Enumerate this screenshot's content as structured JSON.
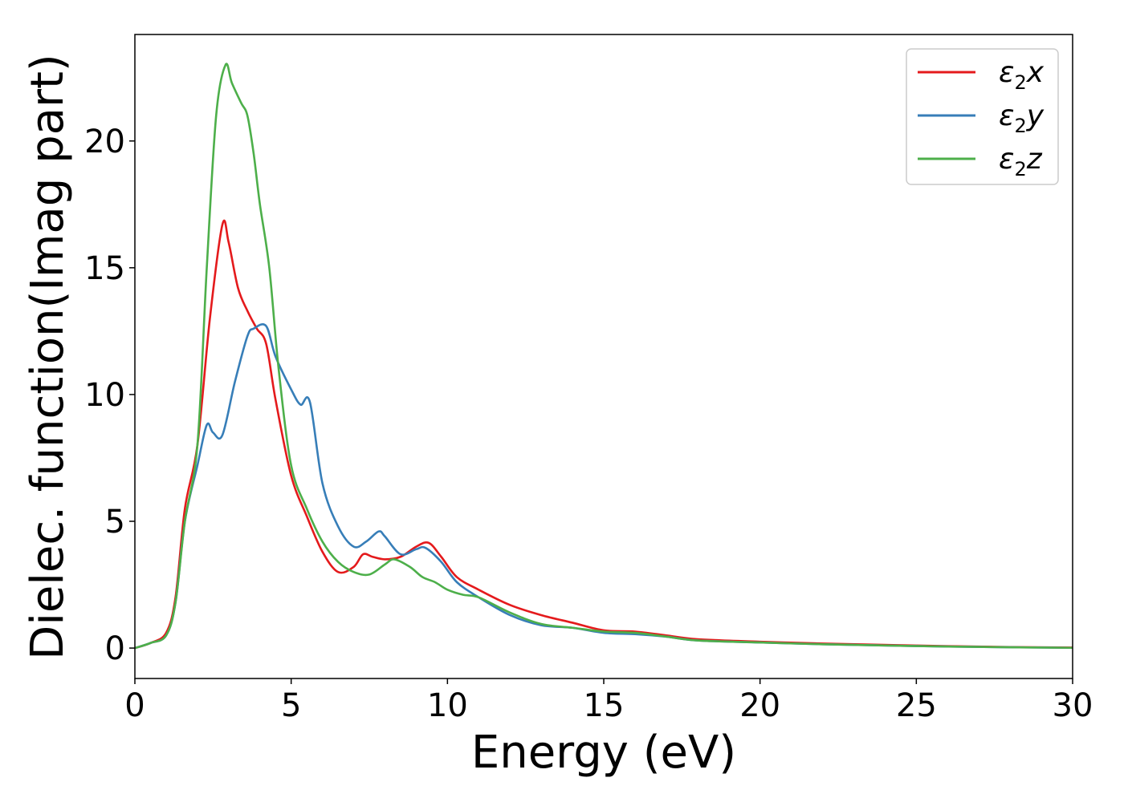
{
  "chart_data": {
    "type": "line",
    "title": "",
    "xlabel": "Energy (eV)",
    "ylabel": "Dielec. function(Imag part)",
    "xlim": [
      0,
      30
    ],
    "ylim": [
      -1.2,
      24.2
    ],
    "xticks": [
      0,
      5,
      10,
      15,
      20,
      25,
      30
    ],
    "yticks": [
      0,
      5,
      10,
      15,
      20
    ],
    "grid": false,
    "legend_position": "top-right",
    "series": [
      {
        "name": "ε2x",
        "legend_base": "ε",
        "legend_sub": "2",
        "legend_suffix": "x",
        "color": "#e41a1c",
        "x": [
          0,
          0.5,
          1.0,
          1.3,
          1.6,
          2.0,
          2.4,
          2.8,
          3.0,
          3.3,
          3.6,
          3.9,
          4.2,
          4.5,
          5.0,
          5.5,
          6.0,
          6.5,
          7.0,
          7.3,
          7.6,
          8.0,
          8.5,
          9.0,
          9.4,
          9.8,
          10.3,
          11.0,
          12.0,
          13.0,
          14.0,
          15.0,
          16.0,
          17.0,
          18.0,
          20.0,
          22.0,
          25.0,
          28.0,
          30.0
        ],
        "values": [
          0,
          0.2,
          0.6,
          2.0,
          5.5,
          8.0,
          13.0,
          16.7,
          16.0,
          14.2,
          13.3,
          12.6,
          12.0,
          9.8,
          6.8,
          5.2,
          3.8,
          3.0,
          3.2,
          3.7,
          3.6,
          3.5,
          3.6,
          4.0,
          4.15,
          3.6,
          2.8,
          2.3,
          1.7,
          1.3,
          1.0,
          0.7,
          0.65,
          0.5,
          0.35,
          0.25,
          0.18,
          0.1,
          0.04,
          0.02
        ]
      },
      {
        "name": "ε2y",
        "legend_base": "ε",
        "legend_sub": "2",
        "legend_suffix": "y",
        "color": "#377eb8",
        "x": [
          0,
          0.5,
          1.0,
          1.3,
          1.6,
          2.0,
          2.3,
          2.5,
          2.8,
          3.2,
          3.6,
          3.8,
          4.2,
          4.5,
          5.0,
          5.3,
          5.6,
          6.0,
          6.5,
          7.0,
          7.4,
          7.8,
          8.0,
          8.5,
          9.0,
          9.3,
          9.8,
          10.3,
          11.0,
          12.0,
          13.0,
          14.0,
          15.0,
          16.0,
          17.0,
          18.0,
          20.0,
          22.0,
          25.0,
          28.0,
          30.0
        ],
        "values": [
          0,
          0.2,
          0.5,
          1.8,
          5.0,
          7.2,
          8.8,
          8.5,
          8.4,
          10.5,
          12.3,
          12.6,
          12.7,
          11.5,
          10.2,
          9.6,
          9.7,
          6.5,
          4.8,
          4.0,
          4.2,
          4.6,
          4.4,
          3.7,
          3.9,
          3.95,
          3.4,
          2.6,
          2.0,
          1.3,
          0.9,
          0.8,
          0.6,
          0.55,
          0.45,
          0.3,
          0.22,
          0.15,
          0.08,
          0.03,
          0.01
        ]
      },
      {
        "name": "ε2z",
        "legend_base": "ε",
        "legend_sub": "2",
        "legend_suffix": "z",
        "color": "#4daf4a",
        "x": [
          0,
          0.5,
          1.0,
          1.3,
          1.6,
          2.0,
          2.3,
          2.6,
          2.9,
          3.1,
          3.4,
          3.6,
          3.8,
          4.0,
          4.3,
          4.6,
          5.0,
          5.5,
          6.0,
          6.5,
          7.0,
          7.5,
          8.0,
          8.3,
          8.8,
          9.2,
          9.6,
          10.0,
          10.5,
          11.0,
          12.0,
          13.0,
          14.0,
          15.0,
          16.0,
          17.0,
          18.0,
          20.0,
          22.0,
          25.0,
          28.0,
          30.0
        ],
        "values": [
          0,
          0.2,
          0.5,
          1.8,
          5.0,
          8.0,
          15.0,
          21.0,
          23.0,
          22.3,
          21.5,
          21.0,
          19.5,
          17.5,
          15.0,
          11.0,
          7.2,
          5.5,
          4.2,
          3.4,
          3.0,
          2.9,
          3.3,
          3.5,
          3.2,
          2.8,
          2.6,
          2.3,
          2.1,
          2.0,
          1.4,
          0.95,
          0.8,
          0.65,
          0.6,
          0.45,
          0.3,
          0.22,
          0.15,
          0.08,
          0.03,
          0.01
        ]
      }
    ]
  }
}
